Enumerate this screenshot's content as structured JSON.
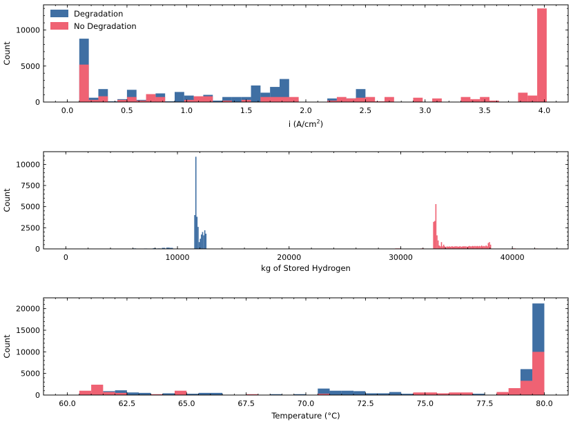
{
  "colors": {
    "degradation": "#3f6fa3",
    "no_degradation": "#ef6273"
  },
  "chart_data": [
    {
      "type": "bar",
      "xlabel_main": "i (A/cm",
      "xlabel_sup": "2",
      "xlabel_close": ")",
      "ylabel": "Count",
      "xlim": [
        -0.2,
        4.2
      ],
      "ylim": [
        0,
        13500
      ],
      "xticks": [
        0.0,
        0.5,
        1.0,
        1.5,
        2.0,
        2.5,
        3.0,
        3.5,
        4.0
      ],
      "xtick_labels": [
        "0.0",
        "0.5",
        "1.0",
        "1.5",
        "2.0",
        "2.5",
        "3.0",
        "3.5",
        "4.0"
      ],
      "yticks": [
        0,
        5000,
        10000
      ],
      "ytick_labels": [
        "0",
        "5000",
        "10000"
      ],
      "legend_position": "top-left",
      "legend": [
        "Degradation",
        "No Degradation"
      ],
      "series": [
        {
          "name": "Degradation",
          "bins": [
            [
              0.1,
              0.18,
              8800
            ],
            [
              0.18,
              0.26,
              600
            ],
            [
              0.26,
              0.34,
              1800
            ],
            [
              0.34,
              0.42,
              100
            ],
            [
              0.42,
              0.5,
              400
            ],
            [
              0.5,
              0.58,
              1700
            ],
            [
              0.58,
              0.66,
              300
            ],
            [
              0.66,
              0.74,
              300
            ],
            [
              0.74,
              0.82,
              1200
            ],
            [
              0.82,
              0.9,
              100
            ],
            [
              0.9,
              0.98,
              1400
            ],
            [
              0.98,
              1.06,
              900
            ],
            [
              1.06,
              1.14,
              500
            ],
            [
              1.14,
              1.22,
              1000
            ],
            [
              1.22,
              1.3,
              200
            ],
            [
              1.3,
              1.38,
              700
            ],
            [
              1.38,
              1.46,
              700
            ],
            [
              1.46,
              1.54,
              700
            ],
            [
              1.54,
              1.62,
              2300
            ],
            [
              1.62,
              1.7,
              1300
            ],
            [
              1.7,
              1.78,
              2100
            ],
            [
              1.78,
              1.86,
              3200
            ],
            [
              1.86,
              1.94,
              300
            ],
            [
              2.18,
              2.26,
              500
            ],
            [
              2.26,
              2.34,
              300
            ],
            [
              2.34,
              2.42,
              500
            ],
            [
              2.42,
              2.5,
              1800
            ],
            [
              3.06,
              3.14,
              100
            ]
          ]
        },
        {
          "name": "No Degradation",
          "bins": [
            [
              0.1,
              0.18,
              5200
            ],
            [
              0.18,
              0.26,
              300
            ],
            [
              0.26,
              0.34,
              800
            ],
            [
              0.42,
              0.5,
              300
            ],
            [
              0.5,
              0.58,
              700
            ],
            [
              0.58,
              0.66,
              200
            ],
            [
              0.66,
              0.74,
              1100
            ],
            [
              0.74,
              0.82,
              700
            ],
            [
              0.98,
              1.06,
              300
            ],
            [
              1.06,
              1.14,
              800
            ],
            [
              1.14,
              1.22,
              800
            ],
            [
              1.3,
              1.38,
              200
            ],
            [
              1.46,
              1.54,
              300
            ],
            [
              1.62,
              1.7,
              700
            ],
            [
              1.7,
              1.78,
              700
            ],
            [
              1.78,
              1.86,
              700
            ],
            [
              1.86,
              1.94,
              700
            ],
            [
              2.18,
              2.26,
              200
            ],
            [
              2.26,
              2.34,
              700
            ],
            [
              2.34,
              2.42,
              500
            ],
            [
              2.42,
              2.5,
              600
            ],
            [
              2.5,
              2.58,
              700
            ],
            [
              2.58,
              2.66,
              100
            ],
            [
              2.66,
              2.74,
              700
            ],
            [
              2.9,
              2.98,
              600
            ],
            [
              3.06,
              3.14,
              500
            ],
            [
              3.3,
              3.38,
              700
            ],
            [
              3.38,
              3.46,
              400
            ],
            [
              3.46,
              3.54,
              700
            ],
            [
              3.54,
              3.62,
              200
            ],
            [
              3.78,
              3.86,
              1300
            ],
            [
              3.86,
              3.94,
              900
            ],
            [
              3.94,
              4.02,
              13000
            ]
          ]
        }
      ]
    },
    {
      "type": "bar",
      "xlabel_main": "kg of Stored Hydrogen",
      "xlabel_sup": "",
      "xlabel_close": "",
      "ylabel": "Count",
      "xlim": [
        -2000,
        45000
      ],
      "ylim": [
        0,
        11500
      ],
      "xticks": [
        0,
        10000,
        20000,
        30000,
        40000
      ],
      "xtick_labels": [
        "0",
        "10000",
        "20000",
        "30000",
        "40000"
      ],
      "yticks": [
        0,
        2500,
        5000,
        7500,
        10000
      ],
      "ytick_labels": [
        "0",
        "2500",
        "5000",
        "7500",
        "10000"
      ],
      "series": [
        {
          "name": "Degradation",
          "bins": [
            [
              6000,
              6300,
              60
            ],
            [
              7000,
              7300,
              50
            ],
            [
              7800,
              8100,
              80
            ],
            [
              8200,
              8500,
              60
            ],
            [
              8600,
              8900,
              120
            ],
            [
              9000,
              9300,
              150
            ],
            [
              9300,
              9600,
              120
            ],
            [
              11500,
              11600,
              4000
            ],
            [
              11600,
              11700,
              10900
            ],
            [
              11700,
              11800,
              3800
            ],
            [
              11800,
              11900,
              2600
            ],
            [
              11900,
              12000,
              800
            ],
            [
              12000,
              12100,
              1200
            ],
            [
              12100,
              12200,
              1700
            ],
            [
              12200,
              12300,
              2000
            ],
            [
              12300,
              12400,
              1600
            ],
            [
              12400,
              12500,
              2200
            ],
            [
              12500,
              12600,
              1800
            ]
          ]
        },
        {
          "name": "No Degradation",
          "bins": [
            [
              29500,
              30000,
              60
            ],
            [
              31800,
              32100,
              60
            ],
            [
              32900,
              33000,
              3200
            ],
            [
              33000,
              33100,
              3300
            ],
            [
              33100,
              33200,
              5300
            ],
            [
              33200,
              33300,
              1600
            ],
            [
              33300,
              33400,
              1000
            ],
            [
              33400,
              33500,
              400
            ],
            [
              33500,
              33600,
              300
            ],
            [
              33600,
              33700,
              800
            ],
            [
              33700,
              33800,
              300
            ],
            [
              33800,
              33900,
              500
            ],
            [
              33900,
              34000,
              300
            ],
            [
              34000,
              34100,
              200
            ],
            [
              34100,
              34200,
              300
            ],
            [
              34200,
              34300,
              250
            ],
            [
              34300,
              34400,
              300
            ],
            [
              34400,
              34500,
              250
            ],
            [
              34500,
              34600,
              300
            ],
            [
              34600,
              34700,
              300
            ],
            [
              34700,
              34800,
              250
            ],
            [
              34800,
              34900,
              300
            ],
            [
              34900,
              35000,
              300
            ],
            [
              35000,
              35100,
              300
            ],
            [
              35100,
              35200,
              250
            ],
            [
              35200,
              35300,
              300
            ],
            [
              35300,
              35400,
              300
            ],
            [
              35400,
              35500,
              250
            ],
            [
              35500,
              35600,
              300
            ],
            [
              35600,
              35700,
              300
            ],
            [
              35700,
              35800,
              300
            ],
            [
              35800,
              35900,
              300
            ],
            [
              35900,
              36000,
              250
            ],
            [
              36000,
              36100,
              300
            ],
            [
              36100,
              36200,
              350
            ],
            [
              36200,
              36300,
              300
            ],
            [
              36300,
              36400,
              300
            ],
            [
              36400,
              36500,
              350
            ],
            [
              36500,
              36600,
              300
            ],
            [
              36600,
              36700,
              350
            ],
            [
              36700,
              36800,
              300
            ],
            [
              36800,
              36900,
              350
            ],
            [
              36900,
              37000,
              300
            ],
            [
              37000,
              37100,
              350
            ],
            [
              37100,
              37200,
              300
            ],
            [
              37200,
              37300,
              400
            ],
            [
              37300,
              37400,
              300
            ],
            [
              37400,
              37500,
              350
            ],
            [
              37500,
              37600,
              300
            ],
            [
              37600,
              37700,
              400
            ],
            [
              37700,
              37800,
              300
            ],
            [
              37800,
              37900,
              700
            ],
            [
              37900,
              38000,
              800
            ],
            [
              38000,
              38100,
              500
            ],
            [
              40000,
              40300,
              60
            ],
            [
              42000,
              42300,
              50
            ]
          ]
        }
      ]
    },
    {
      "type": "bar",
      "xlabel_main": "Temperature (°C)",
      "xlabel_sup": "",
      "xlabel_close": "",
      "ylabel": "Count",
      "xlim": [
        59.0,
        81.0
      ],
      "ylim": [
        0,
        22500
      ],
      "xticks": [
        60.0,
        62.5,
        65.0,
        67.5,
        70.0,
        72.5,
        75.0,
        77.5,
        80.0
      ],
      "xtick_labels": [
        "60.0",
        "62.5",
        "65.0",
        "67.5",
        "70.0",
        "72.5",
        "75.0",
        "77.5",
        "80.0"
      ],
      "yticks": [
        0,
        5000,
        10000,
        15000,
        20000
      ],
      "ytick_labels": [
        "0",
        "5000",
        "10000",
        "15000",
        "20000"
      ],
      "series": [
        {
          "name": "Degradation",
          "bins": [
            [
              61.5,
              62.0,
              900
            ],
            [
              62.0,
              62.5,
              1100
            ],
            [
              62.5,
              63.0,
              600
            ],
            [
              63.0,
              63.5,
              500
            ],
            [
              64.0,
              64.5,
              400
            ],
            [
              65.0,
              65.5,
              300
            ],
            [
              65.5,
              66.0,
              500
            ],
            [
              66.0,
              66.5,
              500
            ],
            [
              68.5,
              69.0,
              200
            ],
            [
              69.5,
              70.0,
              200
            ],
            [
              70.5,
              71.0,
              1500
            ],
            [
              71.0,
              71.5,
              1000
            ],
            [
              71.5,
              72.0,
              1000
            ],
            [
              72.0,
              72.5,
              900
            ],
            [
              72.5,
              73.0,
              400
            ],
            [
              73.0,
              73.5,
              400
            ],
            [
              73.5,
              74.0,
              700
            ],
            [
              74.0,
              74.5,
              300
            ],
            [
              74.5,
              75.0,
              300
            ],
            [
              75.5,
              76.0,
              200
            ],
            [
              77.0,
              77.5,
              300
            ],
            [
              79.0,
              79.5,
              6000
            ],
            [
              79.5,
              80.0,
              21200
            ]
          ]
        },
        {
          "name": "No Degradation",
          "bins": [
            [
              60.5,
              61.0,
              1000
            ],
            [
              61.0,
              61.5,
              2400
            ],
            [
              61.5,
              62.0,
              700
            ],
            [
              62.0,
              62.5,
              500
            ],
            [
              63.5,
              64.0,
              200
            ],
            [
              64.5,
              65.0,
              1000
            ],
            [
              67.5,
              68.0,
              200
            ],
            [
              70.5,
              71.0,
              300
            ],
            [
              74.5,
              75.0,
              600
            ],
            [
              75.0,
              75.5,
              600
            ],
            [
              75.5,
              76.0,
              400
            ],
            [
              76.0,
              76.5,
              600
            ],
            [
              76.5,
              77.0,
              600
            ],
            [
              78.0,
              78.5,
              700
            ],
            [
              78.5,
              79.0,
              1600
            ],
            [
              79.0,
              79.5,
              3300
            ],
            [
              79.5,
              80.0,
              10000
            ],
            [
              79.5,
              80.0,
              9300
            ]
          ]
        }
      ]
    }
  ]
}
